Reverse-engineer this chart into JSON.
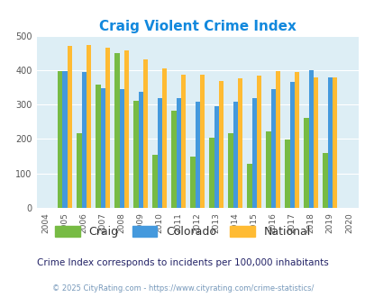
{
  "title": "Craig Violent Crime Index",
  "years": [
    2004,
    2005,
    2006,
    2007,
    2008,
    2009,
    2010,
    2011,
    2012,
    2013,
    2014,
    2015,
    2016,
    2017,
    2018,
    2019,
    2020
  ],
  "craig": [
    null,
    397,
    218,
    358,
    449,
    311,
    153,
    281,
    149,
    205,
    218,
    129,
    221,
    199,
    261,
    160,
    null
  ],
  "colorado": [
    null,
    397,
    394,
    348,
    344,
    337,
    320,
    320,
    309,
    294,
    309,
    320,
    345,
    365,
    400,
    380,
    null
  ],
  "national": [
    null,
    469,
    474,
    466,
    457,
    431,
    405,
    387,
    387,
    368,
    376,
    383,
    397,
    394,
    379,
    379,
    null
  ],
  "craig_color": "#77bb44",
  "colorado_color": "#4499dd",
  "national_color": "#ffbb33",
  "bg_color": "#ddeef5",
  "title_color": "#1188dd",
  "ylim": [
    0,
    500
  ],
  "yticks": [
    0,
    100,
    200,
    300,
    400,
    500
  ],
  "subtitle": "Crime Index corresponds to incidents per 100,000 inhabitants",
  "footer": "© 2025 CityRating.com - https://www.cityrating.com/crime-statistics/",
  "bar_width": 0.25
}
